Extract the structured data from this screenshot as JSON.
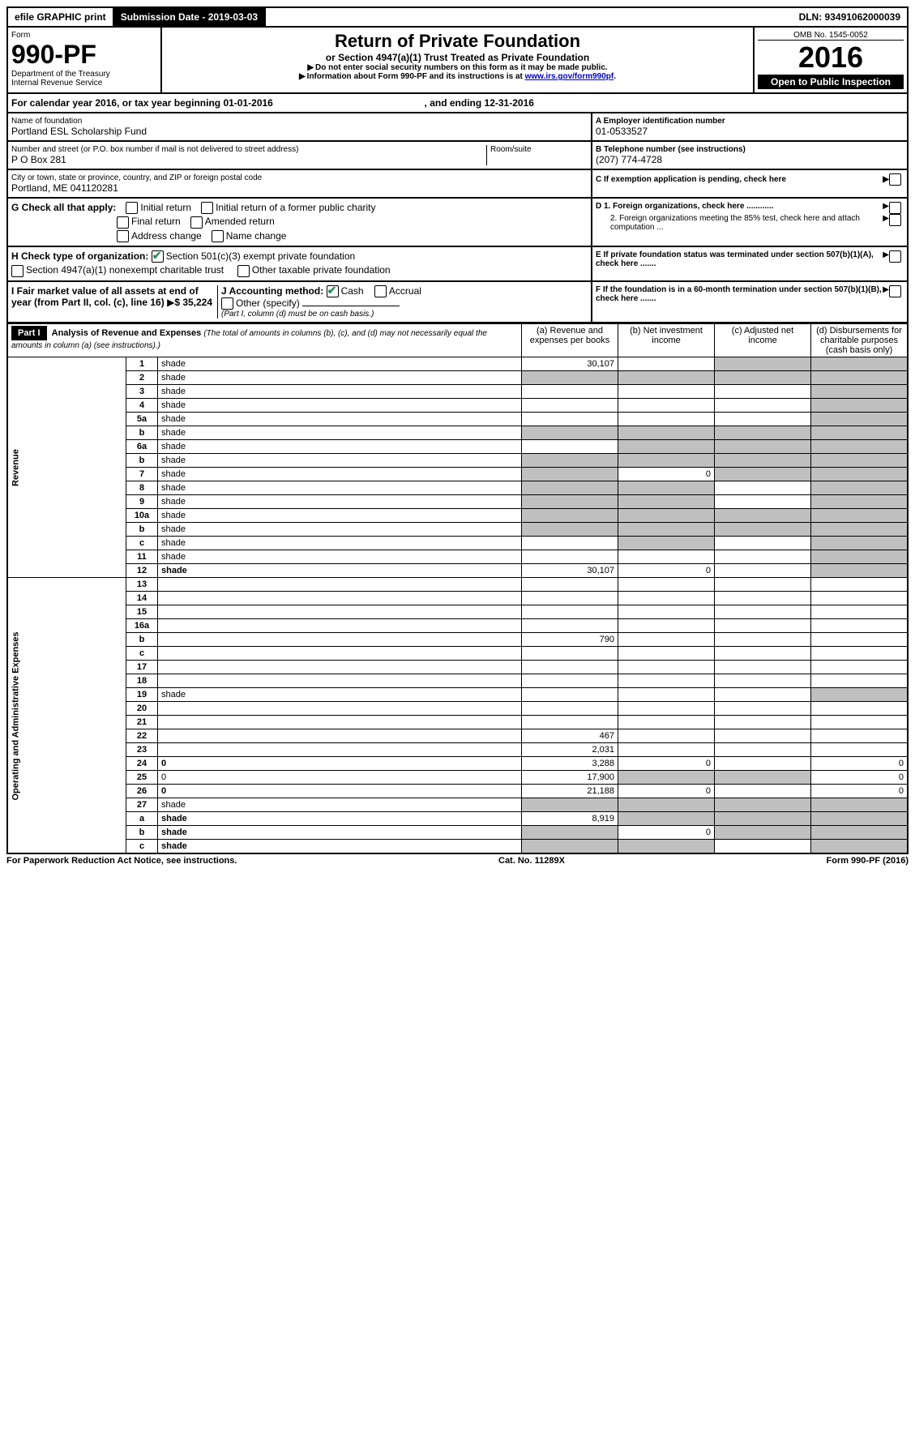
{
  "topbar": {
    "efile": "efile GRAPHIC print",
    "submission_label": "Submission Date - 2019-03-03",
    "dln": "DLN: 93491062000039"
  },
  "header": {
    "form_word": "Form",
    "form_no": "990-PF",
    "dept": "Department of the Treasury",
    "irs": "Internal Revenue Service",
    "title": "Return of Private Foundation",
    "subtitle": "or Section 4947(a)(1) Trust Treated as Private Foundation",
    "note1": "Do not enter social security numbers on this form as it may be made public.",
    "note2_pre": "Information about Form 990-PF and its instructions is at ",
    "note2_link": "www.irs.gov/form990pf",
    "omb": "OMB No. 1545-0052",
    "year": "2016",
    "open": "Open to Public Inspection"
  },
  "cal": {
    "text_pre": "For calendar year 2016, or tax year beginning ",
    "begin": "01-01-2016",
    "text_mid": " , and ending ",
    "end": "12-31-2016"
  },
  "id": {
    "name_label": "Name of foundation",
    "name": "Portland ESL Scholarship Fund",
    "addr_label": "Number and street (or P.O. box number if mail is not delivered to street address)",
    "addr": "P O Box 281",
    "room_label": "Room/suite",
    "city_label": "City or town, state or province, country, and ZIP or foreign postal code",
    "city": "Portland, ME  041120281",
    "ein_label": "A Employer identification number",
    "ein": "01-0533527",
    "phone_label": "B Telephone number (see instructions)",
    "phone": "(207) 774-4728",
    "c_label": "C If exemption application is pending, check here",
    "d1": "D 1. Foreign organizations, check here ............",
    "d2": "2. Foreign organizations meeting the 85% test, check here and attach computation ...",
    "e": "E If private foundation status was terminated under section 507(b)(1)(A), check here .......",
    "f": "F If the foundation is in a 60-month termination under section 507(b)(1)(B), check here ......."
  },
  "g": {
    "label": "G Check all that apply:",
    "initial": "Initial return",
    "initial_former": "Initial return of a former public charity",
    "final": "Final return",
    "amended": "Amended return",
    "addr_change": "Address change",
    "name_change": "Name change"
  },
  "h": {
    "label": "H Check type of organization:",
    "s501": "Section 501(c)(3) exempt private foundation",
    "s4947": "Section 4947(a)(1) nonexempt charitable trust",
    "other_tax": "Other taxable private foundation"
  },
  "i": {
    "label": "I Fair market value of all assets at end of year (from Part II, col. (c), line 16)",
    "value": "$  35,224"
  },
  "j": {
    "label": "J Accounting method:",
    "cash": "Cash",
    "accrual": "Accrual",
    "other": "Other (specify)",
    "note": "(Part I, column (d) must be on cash basis.)"
  },
  "part1": {
    "label": "Part I",
    "title": "Analysis of Revenue and Expenses",
    "title_note": "(The total of amounts in columns (b), (c), and (d) may not necessarily equal the amounts in column (a) (see instructions).)",
    "col_a": "(a) Revenue and expenses per books",
    "col_b": "(b) Net investment income",
    "col_c": "(c) Adjusted net income",
    "col_d": "(d) Disbursements for charitable purposes (cash basis only)"
  },
  "sections": {
    "revenue": "Revenue",
    "expenses": "Operating and Administrative Expenses"
  },
  "rows": [
    {
      "n": "1",
      "d": "shade",
      "a": "30,107",
      "b": "",
      "c": "shade"
    },
    {
      "n": "2",
      "d": "shade",
      "a": "shade",
      "b": "shade",
      "c": "shade",
      "bold_not": true
    },
    {
      "n": "3",
      "d": "shade",
      "a": "",
      "b": "",
      "c": ""
    },
    {
      "n": "4",
      "d": "shade",
      "a": "",
      "b": "",
      "c": ""
    },
    {
      "n": "5a",
      "d": "shade",
      "a": "",
      "b": "",
      "c": ""
    },
    {
      "n": "b",
      "d": "shade",
      "a": "shade",
      "b": "shade",
      "c": "shade"
    },
    {
      "n": "6a",
      "d": "shade",
      "a": "",
      "b": "shade",
      "c": "shade"
    },
    {
      "n": "b",
      "d": "shade",
      "a": "shade",
      "b": "shade",
      "c": "shade"
    },
    {
      "n": "7",
      "d": "shade",
      "a": "shade",
      "b": "0",
      "c": "shade"
    },
    {
      "n": "8",
      "d": "shade",
      "a": "shade",
      "b": "shade",
      "c": ""
    },
    {
      "n": "9",
      "d": "shade",
      "a": "shade",
      "b": "shade",
      "c": ""
    },
    {
      "n": "10a",
      "d": "shade",
      "a": "shade",
      "b": "shade",
      "c": "shade"
    },
    {
      "n": "b",
      "d": "shade",
      "a": "shade",
      "b": "shade",
      "c": "shade"
    },
    {
      "n": "c",
      "d": "shade",
      "a": "",
      "b": "shade",
      "c": ""
    },
    {
      "n": "11",
      "d": "shade",
      "a": "",
      "b": "",
      "c": ""
    },
    {
      "n": "12",
      "d": "shade",
      "a": "30,107",
      "b": "0",
      "c": "",
      "bold": true
    },
    {
      "n": "13",
      "d": "",
      "a": "",
      "b": "",
      "c": ""
    },
    {
      "n": "14",
      "d": "",
      "a": "",
      "b": "",
      "c": ""
    },
    {
      "n": "15",
      "d": "",
      "a": "",
      "b": "",
      "c": ""
    },
    {
      "n": "16a",
      "d": "",
      "a": "",
      "b": "",
      "c": ""
    },
    {
      "n": "b",
      "d": "",
      "a": "790",
      "b": "",
      "c": ""
    },
    {
      "n": "c",
      "d": "",
      "a": "",
      "b": "",
      "c": ""
    },
    {
      "n": "17",
      "d": "",
      "a": "",
      "b": "",
      "c": ""
    },
    {
      "n": "18",
      "d": "",
      "a": "",
      "b": "",
      "c": ""
    },
    {
      "n": "19",
      "d": "shade",
      "a": "",
      "b": "",
      "c": ""
    },
    {
      "n": "20",
      "d": "",
      "a": "",
      "b": "",
      "c": ""
    },
    {
      "n": "21",
      "d": "",
      "a": "",
      "b": "",
      "c": ""
    },
    {
      "n": "22",
      "d": "",
      "a": "467",
      "b": "",
      "c": ""
    },
    {
      "n": "23",
      "d": "",
      "a": "2,031",
      "b": "",
      "c": ""
    },
    {
      "n": "24",
      "d": "0",
      "a": "3,288",
      "b": "0",
      "c": "",
      "bold": true
    },
    {
      "n": "25",
      "d": "0",
      "a": "17,900",
      "b": "shade",
      "c": "shade"
    },
    {
      "n": "26",
      "d": "0",
      "a": "21,188",
      "b": "0",
      "c": "",
      "bold": true
    },
    {
      "n": "27",
      "d": "shade",
      "a": "shade",
      "b": "shade",
      "c": "shade"
    },
    {
      "n": "a",
      "d": "shade",
      "a": "8,919",
      "b": "shade",
      "c": "shade",
      "bold": true
    },
    {
      "n": "b",
      "d": "shade",
      "a": "shade",
      "b": "0",
      "c": "shade",
      "bold": true
    },
    {
      "n": "c",
      "d": "shade",
      "a": "shade",
      "b": "shade",
      "c": "",
      "bold": true
    }
  ],
  "footer": {
    "pra": "For Paperwork Reduction Act Notice, see instructions.",
    "cat": "Cat. No. 11289X",
    "form": "Form 990-PF (2016)"
  },
  "colors": {
    "shade": "#c0c0c0",
    "check_green": "#2e8b57"
  }
}
